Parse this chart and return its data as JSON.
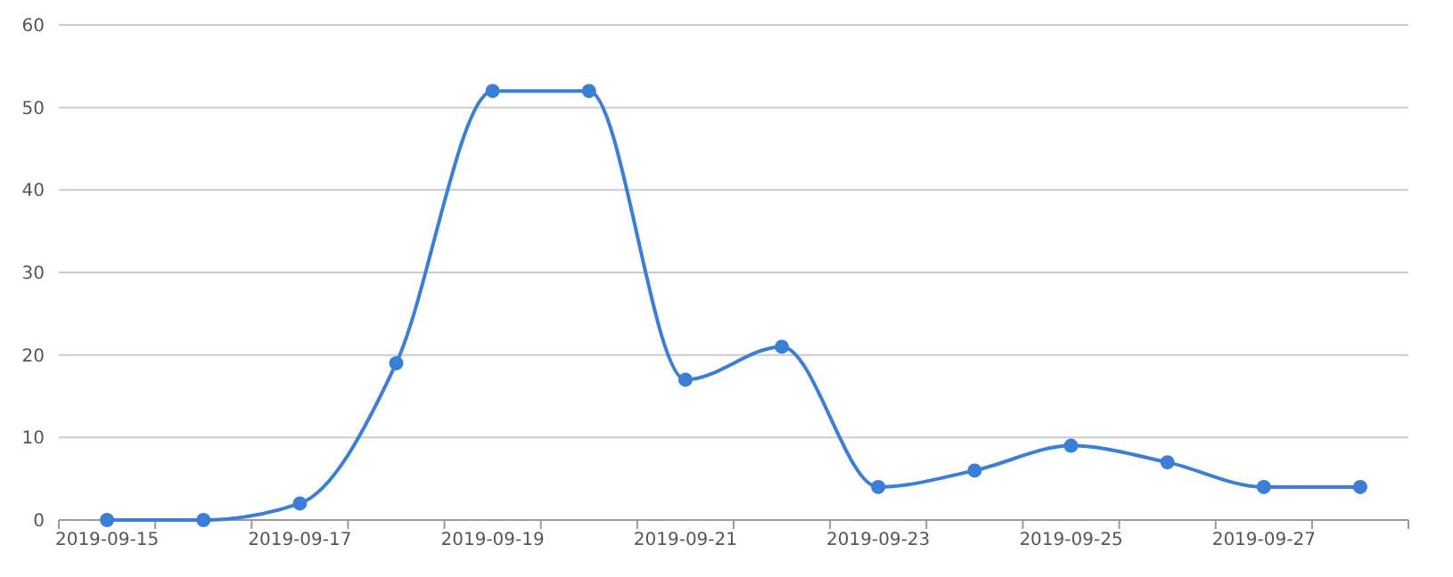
{
  "chart_data": {
    "type": "line",
    "categories": [
      "2019-09-15",
      null,
      "2019-09-17",
      null,
      "2019-09-19",
      null,
      "2019-09-21",
      null,
      "2019-09-23",
      null,
      "2019-09-25",
      null,
      "2019-09-27",
      null
    ],
    "series": [
      {
        "color": "#3a7fd5",
        "values": [
          0,
          0,
          2,
          19,
          52,
          52,
          17,
          21,
          4,
          6,
          9,
          7,
          4,
          4
        ]
      }
    ],
    "ylim": [
      0,
      60
    ],
    "yticks": [
      0,
      10,
      20,
      30,
      40,
      50,
      60
    ],
    "grid": "y",
    "marker": "circle",
    "line_style": "solid"
  }
}
